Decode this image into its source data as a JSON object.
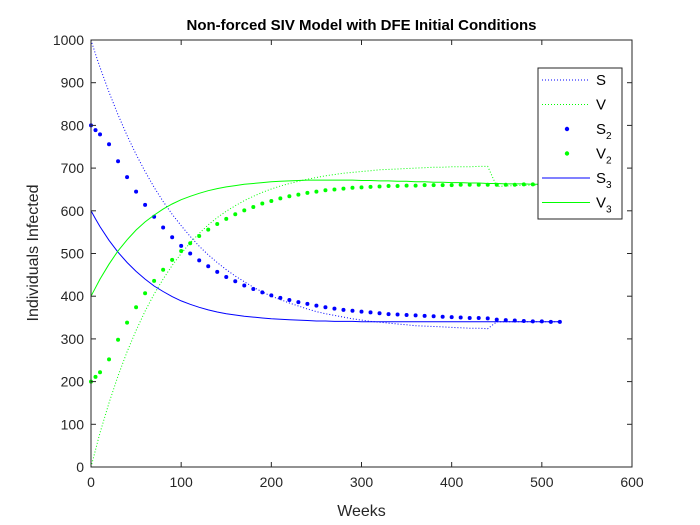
{
  "chart_data": {
    "type": "line",
    "title": "Non-forced SIV Model with DFE Initial Conditions",
    "xlabel": "Weeks",
    "ylabel": "Individuals Infected",
    "xlim": [
      0,
      600
    ],
    "ylim": [
      0,
      1000
    ],
    "xticks": [
      0,
      100,
      200,
      300,
      400,
      500,
      600
    ],
    "yticks": [
      0,
      100,
      200,
      300,
      400,
      500,
      600,
      700,
      800,
      900,
      1000
    ],
    "grid": false,
    "legend_position": "top-right",
    "x": [
      0,
      5,
      10,
      20,
      30,
      40,
      50,
      60,
      70,
      80,
      90,
      100,
      110,
      120,
      130,
      140,
      150,
      160,
      170,
      180,
      190,
      200,
      210,
      220,
      230,
      240,
      250,
      260,
      270,
      280,
      290,
      300,
      310,
      320,
      330,
      340,
      350,
      360,
      370,
      380,
      390,
      400,
      410,
      420,
      430,
      440,
      450,
      460,
      470,
      480,
      490,
      500,
      510,
      520
    ],
    "series": [
      {
        "name": "S",
        "sub": "",
        "color": "#0000ff",
        "style": "dotted",
        "values": [
          1000,
          967,
          936,
          878,
          825,
          776,
          732,
          692,
          655,
          622,
          592,
          565,
          540,
          517,
          497,
          479,
          462,
          447,
          434,
          421,
          410,
          400,
          392,
          384,
          377,
          370,
          364,
          359,
          355,
          351,
          347,
          344,
          341,
          339,
          337,
          335,
          333,
          331,
          330,
          329,
          328,
          327,
          326,
          325,
          325,
          324,
          340,
          340,
          340,
          340,
          340,
          340,
          340,
          340
        ]
      },
      {
        "name": "V",
        "sub": "",
        "color": "#00ff00",
        "style": "dotted",
        "values": [
          0,
          40,
          80,
          150,
          213,
          270,
          320,
          365,
          405,
          440,
          472,
          500,
          525,
          547,
          567,
          584,
          599,
          612,
          624,
          634,
          643,
          651,
          658,
          664,
          669,
          674,
          678,
          682,
          685,
          688,
          690,
          692,
          694,
          696,
          697,
          698,
          699,
          700,
          701,
          702,
          702,
          703,
          703,
          703,
          704,
          704,
          657,
          658,
          659,
          660,
          660,
          661,
          661,
          662
        ]
      },
      {
        "name": "S",
        "sub": "2",
        "color": "#0000ff",
        "style": "markers",
        "values": [
          800,
          789,
          779,
          756,
          716,
          679,
          645,
          614,
          586,
          561,
          538,
          518,
          500,
          484,
          470,
          457,
          445,
          435,
          425,
          417,
          409,
          402,
          396,
          391,
          386,
          382,
          378,
          374,
          371,
          368,
          366,
          364,
          362,
          360,
          358,
          357,
          356,
          355,
          354,
          353,
          352,
          351,
          350,
          349,
          349,
          348,
          345,
          344,
          343,
          342,
          341,
          341,
          340,
          340
        ]
      },
      {
        "name": "V",
        "sub": "2",
        "color": "#00ff00",
        "style": "markers",
        "values": [
          200,
          211,
          222,
          252,
          298,
          338,
          374,
          407,
          436,
          462,
          485,
          506,
          524,
          541,
          556,
          569,
          581,
          592,
          601,
          609,
          617,
          623,
          629,
          634,
          638,
          642,
          645,
          648,
          650,
          652,
          654,
          655,
          656,
          657,
          658,
          658,
          659,
          659,
          660,
          660,
          660,
          660,
          661,
          661,
          661,
          661,
          661,
          661,
          661,
          662,
          662,
          662,
          662,
          662
        ]
      },
      {
        "name": "S",
        "sub": "3",
        "color": "#0000ff",
        "style": "solid",
        "values": [
          600,
          581,
          563,
          531,
          503,
          479,
          458,
          440,
          424,
          411,
          399,
          389,
          381,
          374,
          368,
          363,
          359,
          356,
          353,
          351,
          349,
          347,
          346,
          345,
          344,
          343,
          342,
          342,
          341,
          341,
          341,
          340,
          340,
          340,
          340,
          340,
          340,
          340,
          340,
          340,
          340,
          340,
          340,
          340,
          340,
          340,
          340,
          340,
          340,
          340,
          340,
          340,
          340,
          340
        ]
      },
      {
        "name": "V",
        "sub": "3",
        "color": "#00ff00",
        "style": "solid",
        "values": [
          400,
          420,
          440,
          475,
          506,
          532,
          555,
          574,
          590,
          604,
          616,
          626,
          634,
          641,
          647,
          652,
          656,
          659,
          662,
          664,
          666,
          668,
          669,
          670,
          671,
          672,
          672,
          672,
          672,
          672,
          672,
          671,
          671,
          670,
          670,
          669,
          669,
          668,
          668,
          667,
          667,
          666,
          666,
          665,
          665,
          664,
          664,
          663,
          663,
          663,
          662,
          662,
          662,
          662
        ]
      }
    ]
  }
}
